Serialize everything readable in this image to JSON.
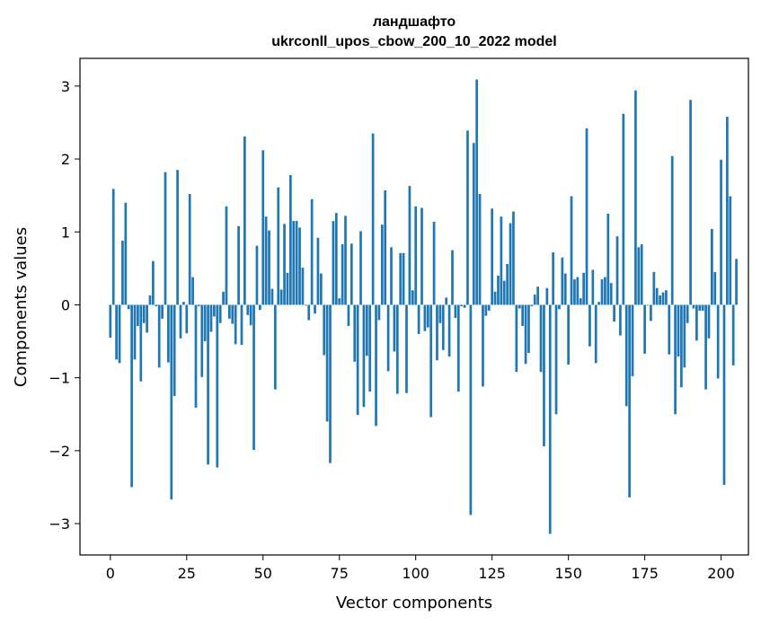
{
  "chart_data": {
    "type": "bar",
    "title_line1": "ландшафто",
    "title_line2": "ukrconll_upos_cbow_200_10_2022 model",
    "xlabel": "Vector components",
    "ylabel": "Components values",
    "xlim": [
      -9.95,
      208.95
    ],
    "ylim": [
      -3.43,
      3.38
    ],
    "xticks": [
      0,
      25,
      50,
      75,
      100,
      125,
      150,
      175,
      200
    ],
    "yticks": [
      -3,
      -2,
      -1,
      0,
      1,
      2,
      3
    ],
    "ytick_labels": [
      "−3",
      "−2",
      "−1",
      "0",
      "1",
      "2",
      "3"
    ],
    "bar_color": "#1f77b4",
    "grid": false,
    "values": [
      -0.45,
      1.59,
      -0.75,
      -0.8,
      0.88,
      1.4,
      -0.06,
      -2.5,
      -0.75,
      -0.29,
      -1.05,
      -0.25,
      -0.38,
      0.13,
      0.6,
      -0.02,
      -0.86,
      -0.19,
      1.82,
      -0.79,
      -2.67,
      -1.25,
      1.85,
      -0.46,
      0.04,
      -0.39,
      1.52,
      0.38,
      -1.41,
      -0.02,
      -0.99,
      -0.5,
      -2.19,
      -0.37,
      -0.16,
      -2.23,
      -0.25,
      0.18,
      1.35,
      -0.19,
      -0.26,
      -0.54,
      1.08,
      -0.55,
      2.31,
      -0.14,
      -0.28,
      -1.99,
      0.81,
      -0.07,
      2.12,
      1.21,
      1.02,
      0.22,
      -1.16,
      1.61,
      0.21,
      1.11,
      0.44,
      1.78,
      1.15,
      1.15,
      1.06,
      0.51,
      -0.01,
      -0.21,
      1.45,
      -0.12,
      0.92,
      0.43,
      -0.69,
      -1.6,
      -2.17,
      1.15,
      1.26,
      0.09,
      0.83,
      1.22,
      -0.29,
      0.84,
      -0.78,
      -1.51,
      1.01,
      -1.4,
      -0.7,
      -1.19,
      2.35,
      -1.66,
      -0.21,
      1.1,
      1.57,
      -0.91,
      0.79,
      -0.64,
      -1.22,
      0.71,
      0.71,
      -1.21,
      1.63,
      0.2,
      1.35,
      -0.4,
      1.33,
      -0.36,
      -0.31,
      -1.54,
      1.14,
      -0.76,
      -0.25,
      -0.62,
      0.1,
      -0.71,
      0.75,
      -0.18,
      -1.19,
      -0.02,
      -0.04,
      2.39,
      -2.88,
      2.22,
      3.09,
      1.52,
      -1.12,
      -0.15,
      -0.08,
      1.32,
      0.18,
      0.4,
      1.21,
      0.33,
      0.56,
      1.12,
      1.28,
      -0.92,
      -0.05,
      -0.29,
      -0.81,
      -0.66,
      -0.02,
      0.14,
      0.25,
      -0.92,
      -1.94,
      0.23,
      -3.14,
      0.72,
      -1.5,
      -0.06,
      0.65,
      0.43,
      -0.82,
      1.49,
      0.35,
      0.38,
      0.09,
      0.44,
      2.42,
      -0.57,
      0.48,
      -0.8,
      0.04,
      0.35,
      0.38,
      1.25,
      0.3,
      -0.23,
      0.94,
      -0.42,
      2.62,
      -1.39,
      -2.64,
      -0.98,
      2.94,
      0.79,
      0.83,
      -0.67,
      -0.01,
      -0.22,
      0.45,
      0.23,
      0.13,
      0.17,
      0.2,
      -0.68,
      2.04,
      -1.5,
      -0.71,
      -1.13,
      -0.86,
      -0.25,
      2.81,
      -0.05,
      -0.49,
      -0.08,
      -0.08,
      -1.16,
      -0.46,
      1.04,
      0.45,
      -1.01,
      1.99,
      -2.47,
      2.58,
      1.49,
      -0.83,
      0.63
    ]
  }
}
